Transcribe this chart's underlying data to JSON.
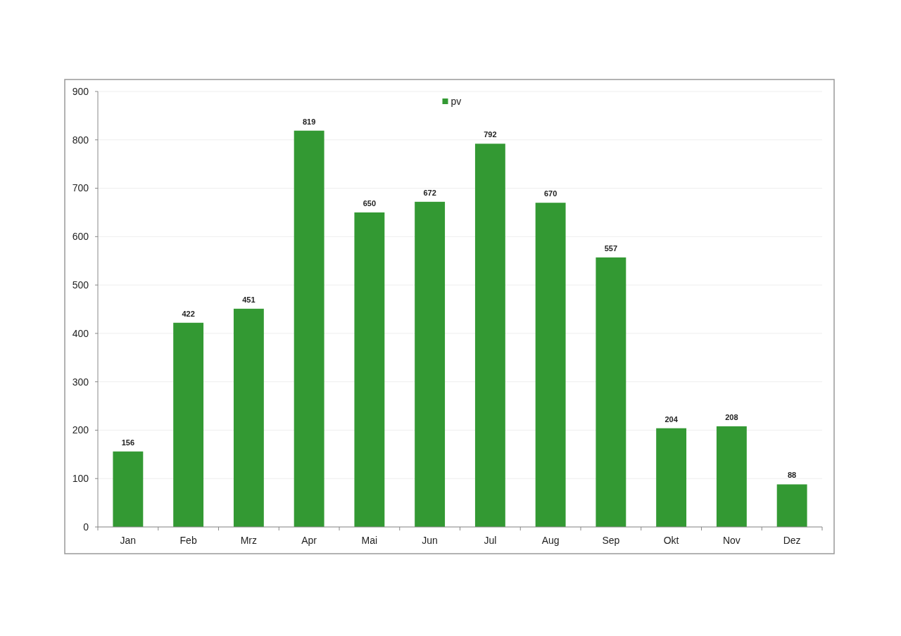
{
  "chart_data": {
    "type": "bar",
    "categories": [
      "Jan",
      "Feb",
      "Mrz",
      "Apr",
      "Mai",
      "Jun",
      "Jul",
      "Aug",
      "Sep",
      "Okt",
      "Nov",
      "Dez"
    ],
    "series": [
      {
        "name": "pv",
        "color": "#339933",
        "values": [
          156,
          422,
          451,
          819,
          650,
          672,
          792,
          670,
          557,
          204,
          208,
          88
        ]
      }
    ],
    "ylim": [
      0,
      900
    ],
    "yticks": [
      0,
      100,
      200,
      300,
      400,
      500,
      600,
      700,
      800,
      900
    ],
    "grid": "y",
    "legend": "top",
    "data_labels": true
  }
}
